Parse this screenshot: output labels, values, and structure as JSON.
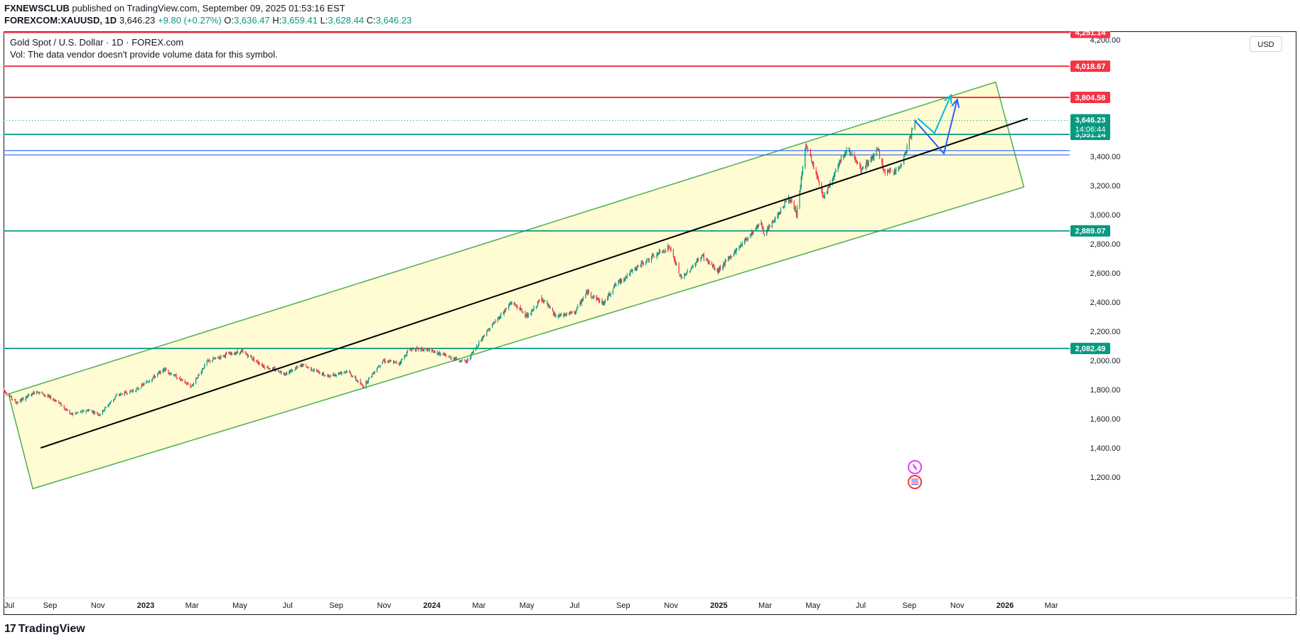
{
  "header": {
    "publisher": "FXNEWSCLUB",
    "published_text": " published on TradingView.com, September 09, 2025 01:53:16 EST",
    "symbol": "FOREXCOM:XAUUSD, 1D",
    "last": "3,646.23",
    "change": "+9.80 (+0.27%)",
    "o_label": "O:",
    "o_value": "3,636.47",
    "h_label": "H:",
    "h_value": "3,659.41",
    "l_label": "L:",
    "l_value": "3,628.44",
    "c_label": "C:",
    "c_value": "3,646.23"
  },
  "legend": {
    "title": "Gold Spot / U.S. Dollar · 1D · FOREX.com",
    "vol": "Vol: The data vendor doesn't provide volume data for this symbol."
  },
  "currency": "USD",
  "footer": {
    "brand": "TradingView",
    "logo_glyph": "17"
  },
  "colors": {
    "up": "#089981",
    "down": "#f23645",
    "resistance": "#f23645",
    "support": "#089981",
    "zone": "#2962ff",
    "channel": "#4caf50",
    "channel_fill": "#fff9c4",
    "trend": "#000000",
    "arrow_cyan": "#00bcd4",
    "arrow_blue": "#2962ff"
  },
  "chart_data": {
    "type": "candlestick",
    "title": "Gold Spot / U.S. Dollar · 1D · FOREX.com",
    "x_ticks": [
      "Jul",
      "Sep",
      "Nov",
      "2023",
      "Mar",
      "May",
      "Jul",
      "Sep",
      "Nov",
      "2024",
      "Mar",
      "May",
      "Jul",
      "Sep",
      "Nov",
      "2025",
      "Mar",
      "May",
      "Jul",
      "Sep",
      "Nov",
      "2026",
      "Mar"
    ],
    "y_ticks": [
      "4,200.00",
      "3,400.00",
      "3,200.00",
      "3,000.00",
      "2,800.00",
      "2,600.00",
      "2,400.00",
      "2,200.00",
      "2,000.00",
      "1,800.00",
      "1,600.00",
      "1,400.00",
      "1,200.00"
    ],
    "y_range": [
      1110,
      4290
    ],
    "x_range": [
      "2022-07-01",
      "2026-03-31"
    ],
    "horizontal_levels": [
      {
        "value": 4251.14,
        "label": "4,251.14",
        "kind": "resistance"
      },
      {
        "value": 4018.67,
        "label": "4,018.67",
        "kind": "resistance"
      },
      {
        "value": 3804.58,
        "label": "3,804.58",
        "kind": "resistance"
      },
      {
        "value": 3551.14,
        "label": "3,551.14",
        "kind": "support"
      },
      {
        "value": 2889.07,
        "label": "2,889.07",
        "kind": "support"
      },
      {
        "value": 2082.49,
        "label": "2,082.49",
        "kind": "support"
      }
    ],
    "zone": [
      3410,
      3440
    ],
    "last_price": {
      "value": 3646.23,
      "label": "3,646.23",
      "countdown": "14:06:44"
    },
    "series": [
      {
        "date": "2022-07-01",
        "close": 1810
      },
      {
        "date": "2022-07-20",
        "close": 1710
      },
      {
        "date": "2022-08-15",
        "close": 1790
      },
      {
        "date": "2022-09-10",
        "close": 1720
      },
      {
        "date": "2022-09-28",
        "close": 1630
      },
      {
        "date": "2022-10-20",
        "close": 1660
      },
      {
        "date": "2022-11-03",
        "close": 1630
      },
      {
        "date": "2022-11-25",
        "close": 1760
      },
      {
        "date": "2022-12-20",
        "close": 1800
      },
      {
        "date": "2023-01-25",
        "close": 1940
      },
      {
        "date": "2023-02-28",
        "close": 1820
      },
      {
        "date": "2023-03-20",
        "close": 1990
      },
      {
        "date": "2023-04-13",
        "close": 2040
      },
      {
        "date": "2023-05-04",
        "close": 2060
      },
      {
        "date": "2023-06-01",
        "close": 1960
      },
      {
        "date": "2023-06-29",
        "close": 1910
      },
      {
        "date": "2023-07-20",
        "close": 1970
      },
      {
        "date": "2023-08-21",
        "close": 1890
      },
      {
        "date": "2023-09-15",
        "close": 1930
      },
      {
        "date": "2023-10-05",
        "close": 1820
      },
      {
        "date": "2023-10-30",
        "close": 2000
      },
      {
        "date": "2023-11-20",
        "close": 1980
      },
      {
        "date": "2023-12-04",
        "close": 2080
      },
      {
        "date": "2023-12-28",
        "close": 2070
      },
      {
        "date": "2024-01-25",
        "close": 2020
      },
      {
        "date": "2024-02-14",
        "close": 1990
      },
      {
        "date": "2024-03-08",
        "close": 2180
      },
      {
        "date": "2024-04-12",
        "close": 2400
      },
      {
        "date": "2024-05-03",
        "close": 2300
      },
      {
        "date": "2024-05-20",
        "close": 2430
      },
      {
        "date": "2024-06-07",
        "close": 2300
      },
      {
        "date": "2024-07-01",
        "close": 2330
      },
      {
        "date": "2024-07-17",
        "close": 2470
      },
      {
        "date": "2024-08-07",
        "close": 2390
      },
      {
        "date": "2024-08-20",
        "close": 2510
      },
      {
        "date": "2024-09-26",
        "close": 2670
      },
      {
        "date": "2024-10-30",
        "close": 2780
      },
      {
        "date": "2024-11-14",
        "close": 2560
      },
      {
        "date": "2024-12-11",
        "close": 2720
      },
      {
        "date": "2024-12-30",
        "close": 2610
      },
      {
        "date": "2025-01-30",
        "close": 2800
      },
      {
        "date": "2025-02-24",
        "close": 2950
      },
      {
        "date": "2025-02-28",
        "close": 2860
      },
      {
        "date": "2025-03-31",
        "close": 3120
      },
      {
        "date": "2025-04-10",
        "close": 3000
      },
      {
        "date": "2025-04-22",
        "close": 3480
      },
      {
        "date": "2025-05-15",
        "close": 3120
      },
      {
        "date": "2025-06-05",
        "close": 3380
      },
      {
        "date": "2025-06-16",
        "close": 3450
      },
      {
        "date": "2025-07-01",
        "close": 3300
      },
      {
        "date": "2025-07-23",
        "close": 3440
      },
      {
        "date": "2025-08-01",
        "close": 3280
      },
      {
        "date": "2025-08-20",
        "close": 3320
      },
      {
        "date": "2025-09-02",
        "close": 3530
      },
      {
        "date": "2025-09-08",
        "close": 3646
      }
    ],
    "channel": {
      "upper_start": {
        "date": "2022-07-10",
        "price": 1770
      },
      "upper_end": {
        "date": "2025-12-20",
        "price": 3910
      },
      "lower_start": {
        "date": "2022-08-10",
        "price": 1120
      },
      "lower_end": {
        "date": "2026-01-25",
        "price": 3190
      }
    },
    "trendline": {
      "start": {
        "date": "2022-08-20",
        "price": 1400
      },
      "end": {
        "date": "2026-01-30",
        "price": 3660
      }
    },
    "projections": [
      {
        "color": "cyan",
        "points": [
          {
            "date": "2025-09-12",
            "price": 3660
          },
          {
            "date": "2025-10-03",
            "price": 3560
          },
          {
            "date": "2025-10-24",
            "price": 3820
          }
        ]
      },
      {
        "color": "blue",
        "points": [
          {
            "date": "2025-09-08",
            "price": 3646
          },
          {
            "date": "2025-10-15",
            "price": 3420
          },
          {
            "date": "2025-11-01",
            "price": 3790
          }
        ]
      }
    ]
  }
}
